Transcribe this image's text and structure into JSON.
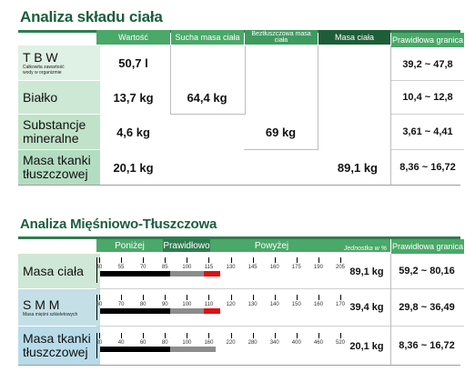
{
  "body_comp": {
    "title": "Analiza składu ciała",
    "headers": {
      "col1": "Wartość",
      "col2": "Sucha masa ciała",
      "col3": "Beztłuszczowa masa ciała",
      "col4": "Masa ciała",
      "col5": "Prawidłowa granica"
    },
    "rows": [
      {
        "label": "T B W",
        "sublabel": "Całkowita zawartość wody w organizmie",
        "value": "50,7 l",
        "range": "39,2 ~ 47,8"
      },
      {
        "label": "Białko",
        "value": "13,7 kg",
        "range": "10,4 ~ 12,8"
      },
      {
        "label": "Substancje mineralne",
        "value": "4,6 kg",
        "range": "3,61 ~ 4,41"
      },
      {
        "label": "Masa tkanki tłuszczowej",
        "value": "20,1 kg",
        "range": "8,36 ~ 16,72"
      }
    ],
    "dry_mass": "64,4 kg",
    "lean_mass": "69 kg",
    "body_mass": "89,1 kg"
  },
  "muscle_fat": {
    "title": "Analiza Mięśniowo-Tłuszczowa",
    "headers": {
      "below": "Poniżej",
      "normal": "Prawidłowo",
      "above": "Powyżej",
      "unit": "Jednostka w %",
      "range": "Prawidłowa granica"
    },
    "rows": [
      {
        "label": "Masa ciała",
        "ticks": [
          "40",
          "55",
          "70",
          "85",
          "100",
          "115",
          "130",
          "145",
          "160",
          "175",
          "190",
          "205"
        ],
        "value": "89,1 kg",
        "range": "59,2 ~ 80,16",
        "fill_black": 0.29,
        "fill_gray": 0.14,
        "fill_red": 0.07
      },
      {
        "label": "S M M",
        "sublabel": "Masa mięśni szkieletowych",
        "ticks": [
          "60",
          "70",
          "80",
          "90",
          "100",
          "110",
          "120",
          "130",
          "140",
          "150",
          "160",
          "170"
        ],
        "value": "39,4 kg",
        "range": "29,8 ~ 36,49",
        "fill_black": 0.29,
        "fill_gray": 0.14,
        "fill_red": 0.07
      },
      {
        "label": "Masa tkanki tłuszczowej",
        "ticks": [
          "20",
          "40",
          "60",
          "80",
          "100",
          "160",
          "220",
          "280",
          "340",
          "400",
          "460",
          "520"
        ],
        "value": "20,1 kg",
        "range": "8,36 ~ 16,72",
        "fill_black": 0.29,
        "fill_gray": 0.19,
        "fill_red": 0.0
      }
    ]
  }
}
